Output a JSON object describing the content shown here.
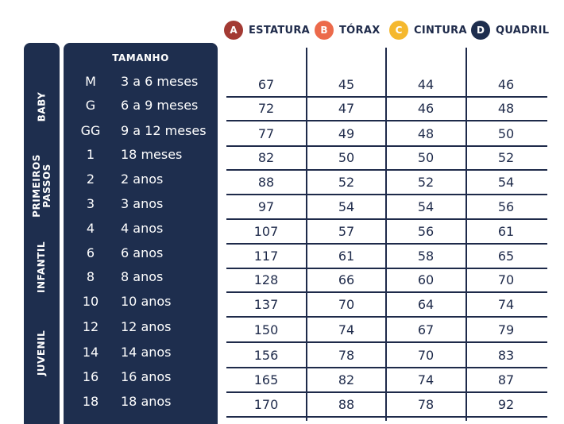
{
  "legend": [
    {
      "letter": "A",
      "label": "ESTATURA",
      "color": "#a33a33"
    },
    {
      "letter": "B",
      "label": "TÓRAX",
      "color": "#ec6a4b"
    },
    {
      "letter": "C",
      "label": "CINTURA",
      "color": "#f5b82e"
    },
    {
      "letter": "D",
      "label": "QUADRIL",
      "color": "#1e2e4e"
    }
  ],
  "categories": [
    {
      "label": "BABY"
    },
    {
      "label": "PRIMEIROS\nPASSOS"
    },
    {
      "label": "INFANTIL"
    },
    {
      "label": "JUVENIL"
    }
  ],
  "size_header": "TAMANHO",
  "rows": [
    {
      "size": "M",
      "age": "3 a 6 meses",
      "a": "67",
      "b": "45",
      "c": "44",
      "d": "46"
    },
    {
      "size": "G",
      "age": "6 a 9 meses",
      "a": "72",
      "b": "47",
      "c": "46",
      "d": "48"
    },
    {
      "size": "GG",
      "age": "9 a 12 meses",
      "a": "77",
      "b": "49",
      "c": "48",
      "d": "50"
    },
    {
      "size": "1",
      "age": "18 meses",
      "a": "82",
      "b": "50",
      "c": "50",
      "d": "52"
    },
    {
      "size": "2",
      "age": "2 anos",
      "a": "88",
      "b": "52",
      "c": "52",
      "d": "54"
    },
    {
      "size": "3",
      "age": "3 anos",
      "a": "97",
      "b": "54",
      "c": "54",
      "d": "56"
    },
    {
      "size": "4",
      "age": "4 anos",
      "a": "107",
      "b": "57",
      "c": "56",
      "d": "61"
    },
    {
      "size": "6",
      "age": "6 anos",
      "a": "117",
      "b": "61",
      "c": "58",
      "d": "65"
    },
    {
      "size": "8",
      "age": "8 anos",
      "a": "128",
      "b": "66",
      "c": "60",
      "d": "70"
    },
    {
      "size": "10",
      "age": "10 anos",
      "a": "137",
      "b": "70",
      "c": "64",
      "d": "74"
    },
    {
      "size": "12",
      "age": "12 anos",
      "a": "150",
      "b": "74",
      "c": "67",
      "d": "79"
    },
    {
      "size": "14",
      "age": "14 anos",
      "a": "156",
      "b": "78",
      "c": "70",
      "d": "83"
    },
    {
      "size": "16",
      "age": "16 anos",
      "a": "165",
      "b": "82",
      "c": "74",
      "d": "87"
    },
    {
      "size": "18",
      "age": "18 anos",
      "a": "170",
      "b": "88",
      "c": "78",
      "d": "92"
    }
  ]
}
